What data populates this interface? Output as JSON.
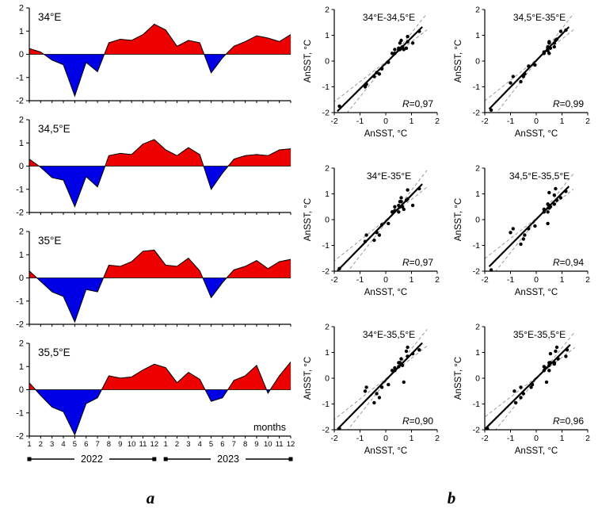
{
  "figure": {
    "panel_a_label": "a",
    "panel_b_label": "b"
  },
  "colors": {
    "positive": "#ec0000",
    "negative": "#0000e6",
    "regression": "#000000",
    "confidence": "#999999",
    "points": "#000000"
  },
  "panel_a": {
    "months_label": "months",
    "y_axis_range": [
      -2,
      2
    ],
    "x_tick_labels": [
      "1",
      "2",
      "3",
      "4",
      "5",
      "6",
      "7",
      "8",
      "9",
      "10",
      "11",
      "12",
      "1",
      "2",
      "3",
      "4",
      "5",
      "6",
      "7",
      "8",
      "9",
      "10",
      "11",
      "12"
    ],
    "year_spans": [
      {
        "label": "2022",
        "from": 1,
        "to": 12
      },
      {
        "label": "2023",
        "from": 13,
        "to": 24
      }
    ]
  },
  "chart_data": [
    {
      "type": "area",
      "title": "34°E",
      "series_id": "34E",
      "ylim": [
        -2,
        2
      ],
      "y_ticks": [
        -2,
        -1,
        0,
        1,
        2
      ],
      "values": [
        0.25,
        0.1,
        -0.25,
        -0.45,
        -1.8,
        -0.35,
        -0.75,
        0.5,
        0.65,
        0.6,
        0.85,
        1.3,
        1.05,
        0.35,
        0.6,
        0.5,
        -0.8,
        -0.15,
        0.35,
        0.55,
        0.8,
        0.7,
        0.55,
        0.85
      ]
    },
    {
      "type": "area",
      "title": "34,5°E",
      "series_id": "34.5E",
      "ylim": [
        -2,
        2
      ],
      "y_ticks": [
        -2,
        -1,
        0,
        1,
        2
      ],
      "values": [
        0.3,
        -0.05,
        -0.5,
        -0.6,
        -1.75,
        -0.45,
        -0.9,
        0.45,
        0.55,
        0.5,
        0.95,
        1.15,
        0.7,
        0.45,
        0.8,
        0.5,
        -1.0,
        -0.3,
        0.3,
        0.45,
        0.5,
        0.45,
        0.7,
        0.75
      ]
    },
    {
      "type": "area",
      "title": "35°E",
      "series_id": "35E",
      "ylim": [
        -2,
        2
      ],
      "y_ticks": [
        -2,
        -1,
        0,
        1,
        2
      ],
      "values": [
        0.3,
        -0.15,
        -0.6,
        -0.8,
        -1.9,
        -0.5,
        -0.6,
        0.55,
        0.5,
        0.7,
        1.15,
        1.2,
        0.55,
        0.5,
        0.85,
        0.3,
        -0.85,
        -0.2,
        0.35,
        0.5,
        0.75,
        0.4,
        0.7,
        0.8
      ]
    },
    {
      "type": "area",
      "title": "35,5°E",
      "series_id": "35.5E",
      "ylim": [
        -2,
        2
      ],
      "y_ticks": [
        -2,
        -1,
        0,
        1,
        2
      ],
      "values": [
        0.3,
        -0.25,
        -0.75,
        -0.95,
        -1.95,
        -0.6,
        -0.35,
        0.6,
        0.5,
        0.55,
        0.85,
        1.1,
        0.95,
        0.3,
        0.75,
        0.45,
        -0.5,
        -0.35,
        0.4,
        0.6,
        1.05,
        -0.15,
        0.6,
        1.2
      ]
    },
    {
      "type": "scatter",
      "title": "34°E-34,5°E",
      "r_label": "R=0,97",
      "x_series": "34E",
      "y_series": "34.5E",
      "xlabel": "AnSST, °C",
      "ylabel": "AnSST, °C",
      "xlim": [
        -2,
        2
      ],
      "ylim": [
        -2,
        2
      ],
      "ticks": [
        -2,
        -1,
        0,
        1,
        2
      ]
    },
    {
      "type": "scatter",
      "title": "34,5°E-35°E",
      "r_label": "R=0,99",
      "x_series": "34.5E",
      "y_series": "35E",
      "xlabel": "AnSST, °C",
      "ylabel": "AnSST, °C",
      "xlim": [
        -2,
        2
      ],
      "ylim": [
        -2,
        2
      ],
      "ticks": [
        -2,
        -1,
        0,
        1,
        2
      ]
    },
    {
      "type": "scatter",
      "title": "34°E-35°E",
      "r_label": "R=0,97",
      "x_series": "34E",
      "y_series": "35E",
      "xlabel": "AnSST, °C",
      "ylabel": "AnSST, °C",
      "xlim": [
        -2,
        2
      ],
      "ylim": [
        -2,
        2
      ],
      "ticks": [
        -2,
        -1,
        0,
        1,
        2
      ]
    },
    {
      "type": "scatter",
      "title": "34,5°E-35,5°E",
      "r_label": "R=0,94",
      "x_series": "34.5E",
      "y_series": "35.5E",
      "xlabel": "AnSST, °C",
      "ylabel": "AnSST, °C",
      "xlim": [
        -2,
        2
      ],
      "ylim": [
        -2,
        2
      ],
      "ticks": [
        -2,
        -1,
        0,
        1,
        2
      ]
    },
    {
      "type": "scatter",
      "title": "34°E-35,5°E",
      "r_label": "R=0,90",
      "x_series": "34E",
      "y_series": "35.5E",
      "xlabel": "AnSST, °C",
      "ylabel": "AnSST, °C",
      "xlim": [
        -2,
        2
      ],
      "ylim": [
        -2,
        2
      ],
      "ticks": [
        -2,
        -1,
        0,
        1,
        2
      ]
    },
    {
      "type": "scatter",
      "title": "35°E-35,5°E",
      "r_label": "R=0,96",
      "x_series": "35E",
      "y_series": "35.5E",
      "xlabel": "AnSST, °C",
      "ylabel": "AnSST, °C",
      "xlim": [
        -2,
        2
      ],
      "ylim": [
        -2,
        2
      ],
      "ticks": [
        -2,
        -1,
        0,
        1,
        2
      ]
    }
  ]
}
